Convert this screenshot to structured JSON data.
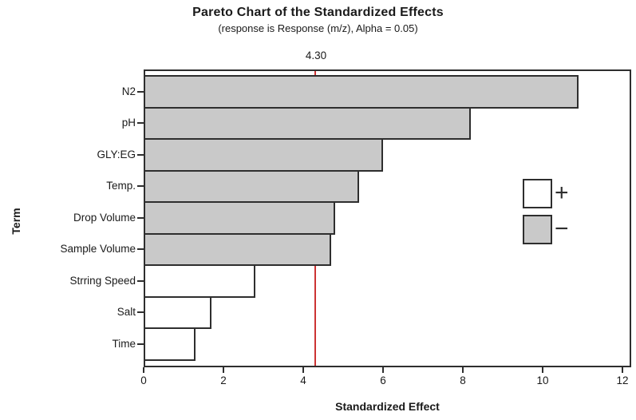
{
  "chart_data": {
    "type": "bar",
    "orientation": "horizontal",
    "title": "Pareto Chart of the Standardized Effects",
    "subtitle": "(response is Response (m/z), Alpha = 0.05)",
    "xlabel": "Standardized Effect",
    "ylabel": "Term",
    "categories": [
      "N2",
      "pH",
      "GLY:EG",
      "Temp.",
      "Drop Volume",
      "Sample Volume",
      "Strring Speed",
      "Salt",
      "Time"
    ],
    "values": [
      10.9,
      8.2,
      6.0,
      5.4,
      4.8,
      4.7,
      2.8,
      1.7,
      1.3
    ],
    "signs": [
      "-",
      "-",
      "-",
      "-",
      "-",
      "-",
      "+",
      "+",
      "+"
    ],
    "x_ticks": [
      0,
      2,
      4,
      6,
      8,
      10,
      12
    ],
    "xlim": [
      0,
      12.2
    ],
    "grid": false,
    "reference_line": {
      "value": 4.3,
      "label": "4.30",
      "color": "#cc3333"
    },
    "colors": {
      "bar_fill_negative": "#c9c9c9",
      "bar_fill_positive": "#ffffff",
      "bar_border": "#2e2e2e",
      "frame": "#2e2e2e",
      "text": "#1a1a1a"
    },
    "legend": [
      {
        "symbol": "+",
        "fill": "#ffffff"
      },
      {
        "symbol": "−",
        "fill": "#c9c9c9"
      }
    ],
    "legend_position": "right-inside"
  }
}
